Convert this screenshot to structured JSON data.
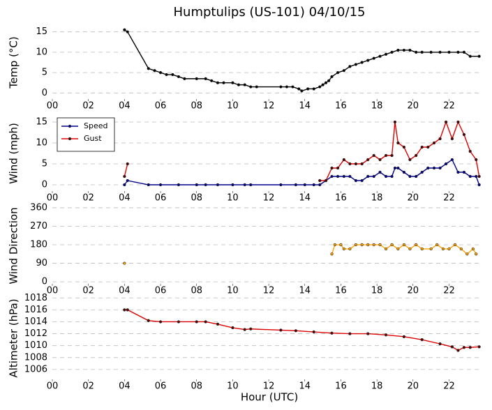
{
  "chart_data": [
    {
      "type": "line",
      "title": "Humptulips (US-101) 04/10/15",
      "y_label": "Temp (°C)",
      "xlim": [
        0,
        23.8
      ],
      "xticks": [
        {
          "value": 0,
          "label": "00"
        },
        {
          "value": 2,
          "label": "02"
        },
        {
          "value": 4,
          "label": "04"
        },
        {
          "value": 6,
          "label": "06"
        },
        {
          "value": 8,
          "label": "08"
        },
        {
          "value": 10,
          "label": "10"
        },
        {
          "value": 12,
          "label": "12"
        },
        {
          "value": 14,
          "label": "14"
        },
        {
          "value": 16,
          "label": "16"
        },
        {
          "value": 18,
          "label": "18"
        },
        {
          "value": 20,
          "label": "20"
        },
        {
          "value": 22,
          "label": "22"
        }
      ],
      "ylim": [
        -2,
        17
      ],
      "yticks": [
        0,
        5,
        10,
        15
      ],
      "grid": true,
      "x": [
        4.0,
        4.17,
        5.33,
        5.67,
        6.0,
        6.33,
        6.67,
        7.0,
        7.33,
        8.0,
        8.5,
        8.83,
        9.17,
        9.5,
        10.0,
        10.33,
        10.67,
        11.0,
        11.33,
        12.67,
        13.0,
        13.33,
        13.67,
        13.83,
        14.17,
        14.5,
        14.83,
        15.0,
        15.17,
        15.33,
        15.5,
        15.83,
        16.17,
        16.5,
        16.83,
        17.17,
        17.5,
        17.83,
        18.17,
        18.5,
        18.83,
        19.17,
        19.5,
        19.83,
        20.17,
        20.5,
        21.0,
        21.5,
        22.0,
        22.5,
        22.83,
        23.17,
        23.67
      ],
      "series": [
        {
          "color": "#000000",
          "marker_color": "#000000",
          "values": [
            15.5,
            15,
            6,
            5.5,
            5,
            4.5,
            4.5,
            4,
            3.5,
            3.5,
            3.5,
            3,
            2.5,
            2.5,
            2.5,
            2,
            2,
            1.5,
            1.5,
            1.5,
            1.5,
            1.5,
            1,
            0.5,
            1,
            1,
            1.5,
            2,
            2.5,
            3,
            4,
            5,
            5.5,
            6.5,
            7,
            7.5,
            8,
            8.5,
            9,
            9.5,
            10,
            10.5,
            10.5,
            10.5,
            10,
            10,
            10,
            10,
            10,
            10,
            10,
            9,
            9
          ]
        }
      ]
    },
    {
      "type": "line",
      "y_label": "Wind (mph)",
      "xlim": [
        0,
        23.8
      ],
      "xticks": [
        {
          "value": 0,
          "label": "00"
        },
        {
          "value": 2,
          "label": "02"
        },
        {
          "value": 4,
          "label": "04"
        },
        {
          "value": 6,
          "label": "06"
        },
        {
          "value": 8,
          "label": "08"
        },
        {
          "value": 10,
          "label": "10"
        },
        {
          "value": 12,
          "label": "12"
        },
        {
          "value": 14,
          "label": "14"
        },
        {
          "value": 16,
          "label": "16"
        },
        {
          "value": 18,
          "label": "18"
        },
        {
          "value": 20,
          "label": "20"
        },
        {
          "value": 22,
          "label": "22"
        }
      ],
      "ylim": [
        -2,
        17
      ],
      "yticks": [
        0,
        5,
        10,
        15
      ],
      "grid": true,
      "legend": "upper left",
      "x": [
        4.0,
        4.17,
        5.33,
        6,
        7,
        8,
        8.5,
        9.17,
        10.0,
        10.67,
        11.0,
        12.67,
        13.5,
        14.0,
        14.5,
        14.83,
        15.17,
        15.5,
        15.83,
        16.17,
        16.5,
        16.83,
        17.17,
        17.5,
        17.83,
        18.17,
        18.5,
        18.83,
        19.0,
        19.17,
        19.5,
        19.83,
        20.17,
        20.5,
        20.83,
        21.17,
        21.5,
        21.83,
        22.17,
        22.5,
        22.83,
        23.17,
        23.5,
        23.67
      ],
      "series": [
        {
          "name": "Speed",
          "color": "#00008b",
          "marker_color": "#00008b",
          "values": [
            0,
            1,
            0,
            0,
            0,
            0,
            0,
            0,
            0,
            0,
            0,
            0,
            0,
            0,
            0,
            0,
            1,
            2,
            2,
            2,
            2,
            1,
            1,
            2,
            2,
            3,
            2,
            2,
            4,
            4,
            3,
            2,
            2,
            3,
            4,
            4,
            4,
            5,
            6,
            3,
            3,
            2,
            2,
            0
          ]
        },
        {
          "name": "Gust",
          "color": "#dd0000",
          "marker_color": "#550000",
          "values": [
            2,
            5,
            null,
            null,
            null,
            null,
            null,
            null,
            null,
            null,
            null,
            null,
            null,
            null,
            null,
            1,
            1,
            4,
            4,
            6,
            5,
            5,
            5,
            6,
            7,
            6,
            7,
            7,
            15,
            10,
            9,
            6,
            7,
            9,
            9,
            10,
            11,
            15,
            11,
            15,
            12,
            8,
            6,
            2
          ]
        }
      ]
    },
    {
      "type": "line",
      "y_label": "Wind Direction",
      "xlim": [
        0,
        23.8
      ],
      "xticks": [
        {
          "value": 0,
          "label": "00"
        },
        {
          "value": 2,
          "label": "02"
        },
        {
          "value": 4,
          "label": "04"
        },
        {
          "value": 6,
          "label": "06"
        },
        {
          "value": 8,
          "label": "08"
        },
        {
          "value": 10,
          "label": "10"
        },
        {
          "value": 12,
          "label": "12"
        },
        {
          "value": 14,
          "label": "14"
        },
        {
          "value": 16,
          "label": "16"
        },
        {
          "value": 18,
          "label": "18"
        },
        {
          "value": 20,
          "label": "20"
        },
        {
          "value": 22,
          "label": "22"
        }
      ],
      "ylim": [
        -20,
        370
      ],
      "yticks": [
        0,
        90,
        180,
        270,
        360
      ],
      "grid": true,
      "x": [
        4.0,
        10,
        15.5,
        15.67,
        16.0,
        16.17,
        16.5,
        16.83,
        17.17,
        17.5,
        17.83,
        18.17,
        18.5,
        18.83,
        19.17,
        19.5,
        19.83,
        20.17,
        20.5,
        21.0,
        21.33,
        21.67,
        22.0,
        22.33,
        22.67,
        23.0,
        23.33,
        23.5
      ],
      "series": [
        {
          "color": "#ffa500",
          "marker_color": "#ffa500",
          "values": [
            90,
            null,
            135,
            180,
            180,
            160,
            160,
            180,
            180,
            180,
            180,
            180,
            160,
            180,
            160,
            180,
            160,
            180,
            160,
            160,
            180,
            160,
            160,
            180,
            160,
            135,
            160,
            135
          ]
        }
      ]
    },
    {
      "type": "line",
      "y_label": "Altimeter (hPa)",
      "x_label": "Hour (UTC)",
      "xlim": [
        0,
        23.8
      ],
      "xticks": [
        {
          "value": 0,
          "label": "00"
        },
        {
          "value": 2,
          "label": "02"
        },
        {
          "value": 4,
          "label": "04"
        },
        {
          "value": 6,
          "label": "06"
        },
        {
          "value": 8,
          "label": "08"
        },
        {
          "value": 10,
          "label": "10"
        },
        {
          "value": 12,
          "label": "12"
        },
        {
          "value": 14,
          "label": "14"
        },
        {
          "value": 16,
          "label": "16"
        },
        {
          "value": 18,
          "label": "18"
        },
        {
          "value": 20,
          "label": "20"
        },
        {
          "value": 22,
          "label": "22"
        }
      ],
      "ylim": [
        1004,
        1018.5
      ],
      "yticks": [
        1006,
        1008,
        1010,
        1012,
        1014,
        1016,
        1018
      ],
      "grid": true,
      "x": [
        4.0,
        4.17,
        5.33,
        6,
        7,
        8,
        8.5,
        9.17,
        10,
        10.67,
        11,
        12.67,
        13.5,
        14.5,
        15.5,
        16.5,
        17.5,
        18.5,
        19.5,
        20.5,
        21.5,
        22.17,
        22.5,
        22.83,
        23.17,
        23.67
      ],
      "series": [
        {
          "color": "#dd0000",
          "marker_color": "#550000",
          "values": [
            1016,
            1016,
            1014.2,
            1014,
            1014,
            1014,
            1014,
            1013.6,
            1013,
            1012.7,
            1012.8,
            1012.6,
            1012.5,
            1012.3,
            1012.1,
            1012,
            1012,
            1011.8,
            1011.5,
            1011,
            1010.3,
            1009.8,
            1009.2,
            1009.7,
            1009.7,
            1009.8
          ]
        }
      ]
    }
  ]
}
